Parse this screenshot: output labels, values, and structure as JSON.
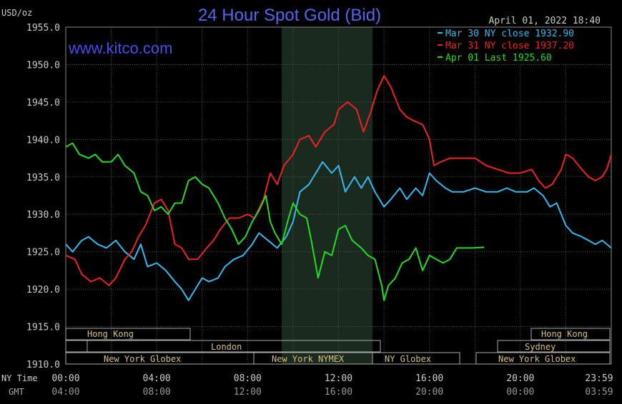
{
  "header": {
    "title": "24 Hour Spot Gold (Bid)",
    "unit": "USD/oz",
    "watermark": "www.kitco.com",
    "timestamp": "April 01, 2022 18:40"
  },
  "legend": [
    {
      "text": "Mar 30 NY close 1932.90",
      "color": "#33bbee"
    },
    {
      "text": "Mar 31 NY close 1937.20",
      "color": "#ee2222"
    },
    {
      "text": "Apr 01 Last 1925.60",
      "color": "#22dd22"
    }
  ],
  "markets": {
    "hong_kong_1": "Hong Kong",
    "london": "London",
    "new_york_globex_1": "New York Globex",
    "new_york_nymex": "New York NYMEX",
    "ny_globex": "NY Globex",
    "hong_kong_2": "Hong Kong",
    "sydney": "Sydney",
    "new_york_globex_2": "New York Globex"
  },
  "axis": {
    "ny_time_label": "NY Time",
    "gmt_label": "GMT",
    "ny_ticks": [
      "00:00",
      "04:00",
      "08:00",
      "12:00",
      "16:00",
      "20:00",
      "23:59"
    ],
    "gmt_ticks": [
      "04:00",
      "08:00",
      "12:00",
      "16:00",
      "20:00",
      "00:00",
      "03:59"
    ],
    "y_ticks": [
      "1955.0",
      "1950.0",
      "1945.0",
      "1940.0",
      "1935.0",
      "1930.0",
      "1925.0",
      "1920.0",
      "1915.0",
      "1910.0"
    ]
  },
  "chart_data": {
    "type": "line",
    "title": "24 Hour Spot Gold (Bid)",
    "ylabel": "USD/oz",
    "xlabel": "NY Time",
    "ylim": [
      1910,
      1955
    ],
    "xlim_hours": [
      0,
      24
    ],
    "grid": true,
    "legend_position": "top-right",
    "shaded_region_hours": [
      9.5,
      13.5
    ],
    "series": [
      {
        "name": "Mar 30 NY close 1932.90",
        "color": "#33bbee",
        "points": [
          [
            0,
            1926.0
          ],
          [
            0.3,
            1925.0
          ],
          [
            0.7,
            1926.5
          ],
          [
            1.0,
            1927.0
          ],
          [
            1.4,
            1926.0
          ],
          [
            1.8,
            1925.5
          ],
          [
            2.2,
            1926.5
          ],
          [
            2.6,
            1925.0
          ],
          [
            3.0,
            1924.0
          ],
          [
            3.3,
            1926.0
          ],
          [
            3.6,
            1923.0
          ],
          [
            4.0,
            1923.5
          ],
          [
            4.4,
            1922.5
          ],
          [
            4.8,
            1921.0
          ],
          [
            5.1,
            1920.0
          ],
          [
            5.4,
            1918.5
          ],
          [
            5.7,
            1920.0
          ],
          [
            6.0,
            1921.5
          ],
          [
            6.3,
            1921.0
          ],
          [
            6.7,
            1921.5
          ],
          [
            7.0,
            1923.0
          ],
          [
            7.4,
            1924.0
          ],
          [
            7.8,
            1924.5
          ],
          [
            8.2,
            1926.0
          ],
          [
            8.5,
            1927.5
          ],
          [
            8.9,
            1926.5
          ],
          [
            9.3,
            1925.5
          ],
          [
            9.7,
            1927.0
          ],
          [
            10.0,
            1929.0
          ],
          [
            10.3,
            1933.0
          ],
          [
            10.7,
            1934.0
          ],
          [
            11.0,
            1935.5
          ],
          [
            11.3,
            1937.0
          ],
          [
            11.7,
            1935.5
          ],
          [
            12.0,
            1936.5
          ],
          [
            12.3,
            1933.0
          ],
          [
            12.7,
            1935.0
          ],
          [
            13.0,
            1933.5
          ],
          [
            13.3,
            1935.0
          ],
          [
            13.6,
            1933.0
          ],
          [
            14.0,
            1931.0
          ],
          [
            14.3,
            1932.0
          ],
          [
            14.7,
            1933.5
          ],
          [
            15.0,
            1932.0
          ],
          [
            15.4,
            1933.5
          ],
          [
            15.7,
            1932.5
          ],
          [
            16.0,
            1935.5
          ],
          [
            16.3,
            1934.5
          ],
          [
            16.7,
            1933.5
          ],
          [
            17.0,
            1933.0
          ],
          [
            17.5,
            1933.0
          ],
          [
            18.0,
            1933.5
          ],
          [
            18.5,
            1933.0
          ],
          [
            19.0,
            1933.0
          ],
          [
            19.4,
            1933.5
          ],
          [
            19.8,
            1933.0
          ],
          [
            20.3,
            1933.0
          ],
          [
            20.6,
            1933.5
          ],
          [
            21.0,
            1932.5
          ],
          [
            21.3,
            1931.0
          ],
          [
            21.6,
            1931.5
          ],
          [
            22.0,
            1928.5
          ],
          [
            22.3,
            1927.5
          ],
          [
            22.7,
            1927.0
          ],
          [
            23.0,
            1926.5
          ],
          [
            23.3,
            1926.0
          ],
          [
            23.6,
            1926.5
          ],
          [
            24.0,
            1925.5
          ]
        ]
      },
      {
        "name": "Mar 31 NY close 1937.20",
        "color": "#ee2222",
        "points": [
          [
            0,
            1924.5
          ],
          [
            0.4,
            1924.0
          ],
          [
            0.7,
            1922.0
          ],
          [
            1.1,
            1921.0
          ],
          [
            1.5,
            1921.5
          ],
          [
            1.9,
            1920.5
          ],
          [
            2.2,
            1921.5
          ],
          [
            2.6,
            1924.0
          ],
          [
            2.9,
            1925.0
          ],
          [
            3.2,
            1927.0
          ],
          [
            3.5,
            1928.5
          ],
          [
            3.9,
            1931.5
          ],
          [
            4.2,
            1932.0
          ],
          [
            4.5,
            1930.5
          ],
          [
            4.8,
            1926.0
          ],
          [
            5.1,
            1925.5
          ],
          [
            5.4,
            1924.0
          ],
          [
            5.8,
            1924.0
          ],
          [
            6.2,
            1925.5
          ],
          [
            6.5,
            1926.5
          ],
          [
            6.8,
            1928.0
          ],
          [
            7.2,
            1929.5
          ],
          [
            7.6,
            1929.5
          ],
          [
            8.0,
            1930.0
          ],
          [
            8.3,
            1929.5
          ],
          [
            8.7,
            1932.0
          ],
          [
            9.0,
            1935.5
          ],
          [
            9.3,
            1934.0
          ],
          [
            9.6,
            1936.5
          ],
          [
            10.0,
            1938.0
          ],
          [
            10.3,
            1940.0
          ],
          [
            10.7,
            1940.5
          ],
          [
            11.0,
            1939.0
          ],
          [
            11.4,
            1941.0
          ],
          [
            11.8,
            1942.0
          ],
          [
            12.0,
            1944.0
          ],
          [
            12.4,
            1945.0
          ],
          [
            12.8,
            1944.0
          ],
          [
            13.1,
            1941.0
          ],
          [
            13.4,
            1943.5
          ],
          [
            13.7,
            1946.5
          ],
          [
            14.0,
            1948.5
          ],
          [
            14.3,
            1947.0
          ],
          [
            14.7,
            1944.0
          ],
          [
            15.0,
            1943.0
          ],
          [
            15.3,
            1942.5
          ],
          [
            15.7,
            1942.0
          ],
          [
            16.0,
            1940.0
          ],
          [
            16.2,
            1936.5
          ],
          [
            16.5,
            1937.0
          ],
          [
            16.9,
            1937.5
          ],
          [
            17.5,
            1937.5
          ],
          [
            18.0,
            1937.5
          ],
          [
            18.5,
            1936.5
          ],
          [
            19.0,
            1936.0
          ],
          [
            19.5,
            1935.5
          ],
          [
            20.0,
            1935.5
          ],
          [
            20.5,
            1936.0
          ],
          [
            20.8,
            1934.5
          ],
          [
            21.1,
            1933.5
          ],
          [
            21.4,
            1934.0
          ],
          [
            21.8,
            1936.0
          ],
          [
            22.0,
            1938.0
          ],
          [
            22.3,
            1937.5
          ],
          [
            22.7,
            1936.0
          ],
          [
            23.0,
            1935.0
          ],
          [
            23.3,
            1934.5
          ],
          [
            23.6,
            1935.0
          ],
          [
            23.8,
            1936.0
          ],
          [
            24.0,
            1938.0
          ]
        ]
      },
      {
        "name": "Apr 01 Last 1925.60",
        "color": "#22dd22",
        "points": [
          [
            0,
            1939.0
          ],
          [
            0.3,
            1939.5
          ],
          [
            0.6,
            1938.0
          ],
          [
            1.0,
            1937.5
          ],
          [
            1.3,
            1938.0
          ],
          [
            1.6,
            1937.0
          ],
          [
            2.0,
            1937.0
          ],
          [
            2.3,
            1938.0
          ],
          [
            2.6,
            1936.5
          ],
          [
            3.0,
            1935.5
          ],
          [
            3.3,
            1933.0
          ],
          [
            3.6,
            1932.5
          ],
          [
            3.9,
            1930.5
          ],
          [
            4.2,
            1931.0
          ],
          [
            4.5,
            1930.0
          ],
          [
            4.8,
            1931.5
          ],
          [
            5.1,
            1931.5
          ],
          [
            5.4,
            1934.5
          ],
          [
            5.7,
            1935.0
          ],
          [
            6.0,
            1934.0
          ],
          [
            6.3,
            1933.5
          ],
          [
            6.7,
            1931.5
          ],
          [
            7.0,
            1929.5
          ],
          [
            7.3,
            1928.0
          ],
          [
            7.6,
            1926.0
          ],
          [
            7.9,
            1927.0
          ],
          [
            8.2,
            1929.0
          ],
          [
            8.5,
            1930.5
          ],
          [
            8.8,
            1932.5
          ],
          [
            9.0,
            1929.0
          ],
          [
            9.2,
            1927.5
          ],
          [
            9.5,
            1926.0
          ],
          [
            9.8,
            1929.5
          ],
          [
            10.0,
            1931.5
          ],
          [
            10.3,
            1930.0
          ],
          [
            10.6,
            1929.5
          ],
          [
            10.8,
            1926.5
          ],
          [
            11.1,
            1921.5
          ],
          [
            11.4,
            1925.0
          ],
          [
            11.7,
            1924.5
          ],
          [
            12.0,
            1928.0
          ],
          [
            12.3,
            1928.5
          ],
          [
            12.6,
            1926.5
          ],
          [
            13.0,
            1925.5
          ],
          [
            13.3,
            1924.5
          ],
          [
            13.6,
            1924.0
          ],
          [
            13.9,
            1920.5
          ],
          [
            14.0,
            1918.5
          ],
          [
            14.2,
            1920.5
          ],
          [
            14.5,
            1921.5
          ],
          [
            14.8,
            1923.5
          ],
          [
            15.1,
            1924.0
          ],
          [
            15.4,
            1925.5
          ],
          [
            15.7,
            1922.5
          ],
          [
            16.0,
            1924.5
          ],
          [
            16.3,
            1924.0
          ],
          [
            16.6,
            1923.5
          ],
          [
            16.9,
            1924.0
          ],
          [
            17.2,
            1925.5
          ],
          [
            17.5,
            1925.5
          ],
          [
            17.9,
            1925.5
          ],
          [
            18.4,
            1925.6
          ]
        ]
      }
    ]
  }
}
